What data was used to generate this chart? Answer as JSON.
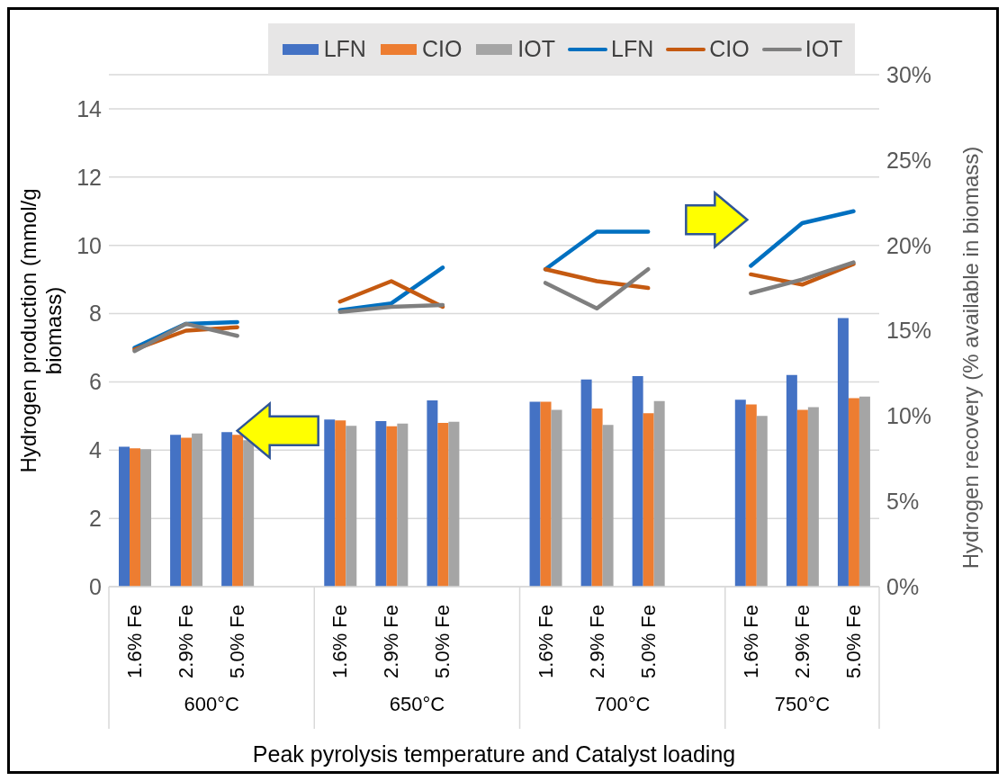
{
  "chart_data": {
    "type": "bar",
    "xlabel": "Peak pyrolysis temperature and Catalyst loading",
    "ylabel": "Hydrogen production (mmol/g biomass)",
    "y2label": "Hydrogen recovery (% available in biomass)",
    "categories": [
      "1.6% Fe",
      "2.9% Fe",
      "5.0% Fe",
      null,
      "1.6% Fe",
      "2.9% Fe",
      "5.0% Fe",
      null,
      "1.6% Fe",
      "2.9% Fe",
      "5.0% Fe",
      null,
      "1.6% Fe",
      "2.9% Fe",
      "5.0% Fe"
    ],
    "annotations": [
      "600°C",
      "650°C",
      "700°C",
      "750°C"
    ],
    "ylim": [
      0,
      15
    ],
    "yticks": [
      0,
      2,
      4,
      6,
      8,
      10,
      12,
      14
    ],
    "y2lim": [
      0,
      30
    ],
    "y2ticks": [
      {
        "value": 0,
        "label": "0%"
      },
      {
        "value": 5,
        "label": "5%"
      },
      {
        "value": 10,
        "label": "10%"
      },
      {
        "value": 15,
        "label": "15%"
      },
      {
        "value": 20,
        "label": "20%"
      },
      {
        "value": 25,
        "label": "25%"
      },
      {
        "value": 30,
        "label": "30%"
      }
    ],
    "grid": "y",
    "legend": "top",
    "marker": "none",
    "series": [
      {
        "name": "LFN",
        "color": "#4472c4",
        "values": [
          4.1,
          4.45,
          4.53,
          null,
          4.9,
          4.85,
          5.46,
          null,
          5.42,
          6.07,
          6.17,
          null,
          5.48,
          6.2,
          7.87
        ]
      },
      {
        "name": "CIO",
        "color": "#ed7d31",
        "values": [
          4.05,
          4.36,
          4.45,
          null,
          4.87,
          4.7,
          4.8,
          null,
          5.42,
          5.22,
          5.08,
          null,
          5.34,
          5.18,
          5.52
        ]
      },
      {
        "name": "IOT",
        "color": "#a5a5a5",
        "values": [
          4.03,
          4.49,
          4.29,
          null,
          4.71,
          4.78,
          4.83,
          null,
          5.18,
          4.74,
          5.44,
          null,
          5.0,
          5.26,
          5.57
        ]
      },
      {
        "name": "LFN",
        "type": "line",
        "axis": "y2",
        "color": "#0070c0",
        "values": [
          14.0,
          15.4,
          15.5,
          null,
          16.2,
          16.6,
          18.7,
          null,
          18.6,
          20.8,
          20.8,
          null,
          18.8,
          21.3,
          22.0
        ]
      },
      {
        "name": "CIO",
        "type": "line",
        "axis": "y2",
        "color": "#c55a11",
        "values": [
          13.9,
          15.0,
          15.2,
          null,
          16.7,
          17.9,
          16.4,
          null,
          18.6,
          17.9,
          17.5,
          null,
          18.3,
          17.7,
          18.9
        ]
      },
      {
        "name": "IOT",
        "type": "line",
        "axis": "y2",
        "color": "#7f7f7f",
        "values": [
          13.8,
          15.4,
          14.7,
          null,
          16.1,
          16.4,
          16.5,
          null,
          17.8,
          16.3,
          18.6,
          null,
          17.2,
          18.0,
          19.0
        ]
      }
    ]
  }
}
